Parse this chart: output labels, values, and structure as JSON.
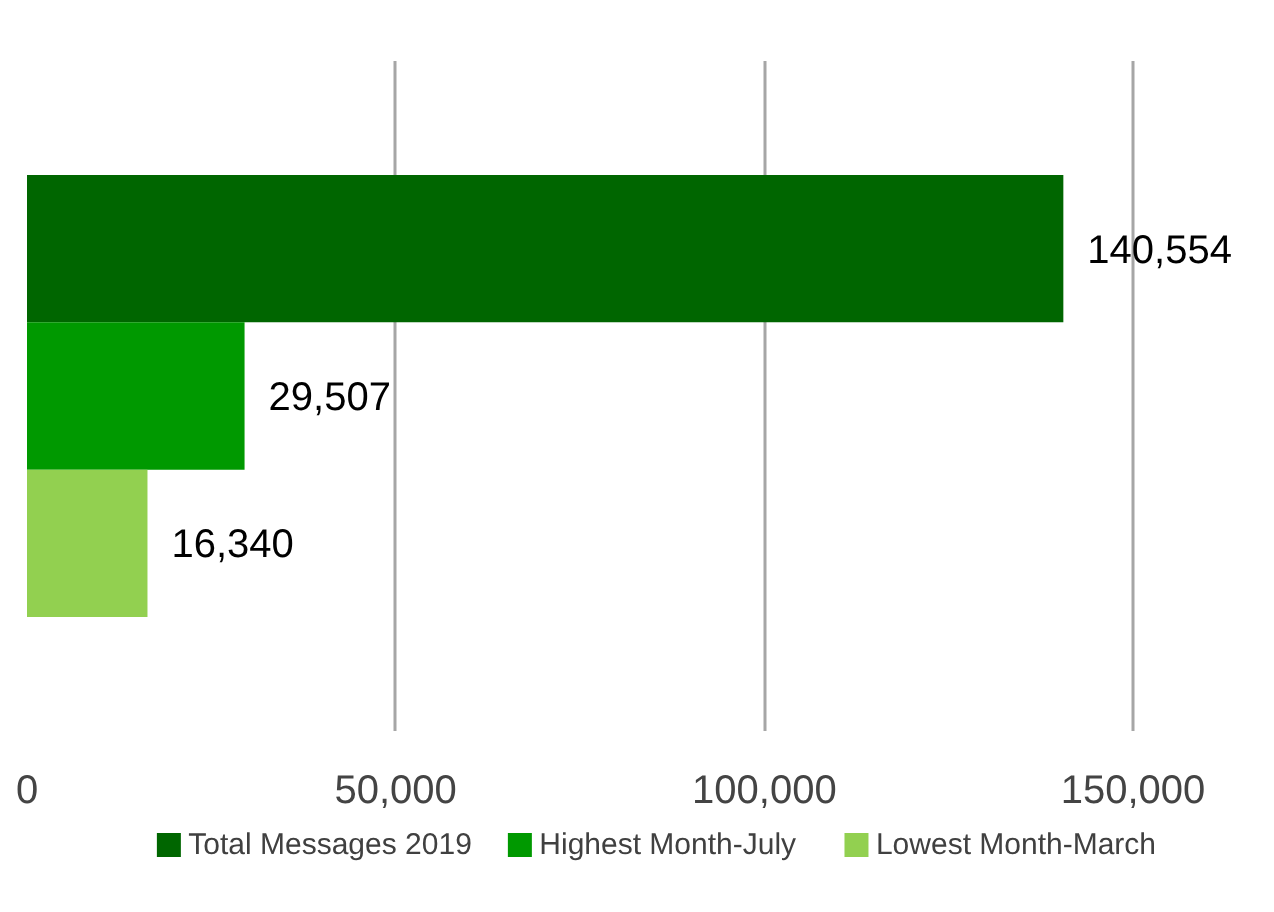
{
  "chart_data": {
    "type": "bar",
    "orientation": "horizontal",
    "categories": [
      null
    ],
    "series": [
      {
        "name": "Total Messages 2019",
        "color": "#006600",
        "values": [
          140554
        ],
        "value_labels": [
          "140,554"
        ]
      },
      {
        "name": "Highest Month-July",
        "color": "#009900",
        "values": [
          29507
        ],
        "value_labels": [
          "29,507"
        ]
      },
      {
        "name": "Lowest Month-March",
        "color": "#92d050",
        "values": [
          16340
        ],
        "value_labels": [
          "16,340"
        ]
      }
    ],
    "xlim": [
      0,
      150000
    ],
    "xticks": [
      0,
      {
        "value": 50000,
        "label": "50,000"
      },
      {
        "value": 100000,
        "label": "100,000"
      },
      {
        "value": 150000,
        "label": "150,000"
      }
    ],
    "grid": "x",
    "legend": "bottom",
    "data_labels": true
  }
}
